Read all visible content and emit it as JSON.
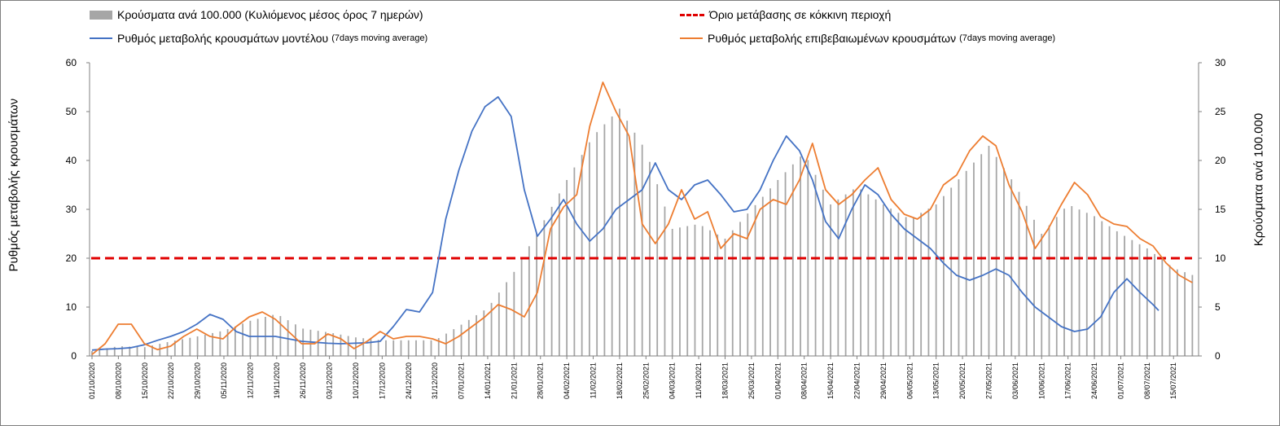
{
  "legend": {
    "cases_label": "Κρούσματα ανά 100.000 (Κυλιόμενος μέσος όρος 7 ημερών)",
    "cases_prefix": "Κρούσματα ανά",
    "cases_number": "100.000",
    "cases_suffix": "(Κυλιόμενος μέσος όρος",
    "cases_seven": "7",
    "cases_tail": "ημερών)",
    "threshold_label": "Όριο μετάβασης σε κόκκινη περιοχή",
    "model_label": "Ρυθμός μεταβολής κρουσμάτων μοντέλου",
    "model_note": "(7days moving average)",
    "confirmed_label": "Ρυθμός μεταβολής επιβεβαιωμένων κρουσμάτων",
    "confirmed_note": "(7days moving average)"
  },
  "axes": {
    "left_title": "Ρυθμός μεταβολής κρουσμάτων",
    "right_title": "Κρούσματα ανά 100.000"
  },
  "colors": {
    "bars": "#a6a6a6",
    "model": "#4472c4",
    "confirmed": "#ed7d31",
    "threshold": "#e00000"
  },
  "chart_data": {
    "type": "line",
    "title": "",
    "x_start": "01/10/2020",
    "x_end": "21/07/2021",
    "xtick_labels": [
      "01/10/2020",
      "08/10/2020",
      "15/10/2020",
      "22/10/2020",
      "29/10/2020",
      "05/11/2020",
      "12/11/2020",
      "19/11/2020",
      "26/11/2020",
      "03/12/2020",
      "10/12/2020",
      "17/12/2020",
      "24/12/2020",
      "31/12/2020",
      "07/01/2021",
      "14/01/2021",
      "21/01/2021",
      "28/01/2021",
      "04/02/2021",
      "11/02/2021",
      "18/02/2021",
      "25/02/2021",
      "04/03/2021",
      "11/03/2021",
      "18/03/2021",
      "25/03/2021",
      "01/04/2021",
      "08/04/2021",
      "15/04/2021",
      "22/04/2021",
      "29/04/2021",
      "06/05/2021",
      "13/05/2021",
      "20/05/2021",
      "27/05/2021",
      "03/06/2021",
      "10/06/2021",
      "17/06/2021",
      "24/06/2021",
      "01/07/2021",
      "08/07/2021",
      "15/07/2021"
    ],
    "ylim_left": [
      0,
      60
    ],
    "yticks_left": [
      0,
      10,
      20,
      30,
      40,
      50,
      60
    ],
    "ylim_right": [
      0,
      30
    ],
    "yticks_right": [
      0,
      5,
      10,
      15,
      20,
      25,
      30
    ],
    "threshold": 20,
    "series": [
      {
        "name": "Κρούσματα ανά 100.000 (Κυλιόμενος μέσος όρος 7 ημερών)",
        "type": "bar",
        "axis": "right",
        "points": [
          [
            0,
            0.5
          ],
          [
            7,
            1.0
          ],
          [
            14,
            0.9
          ],
          [
            21,
            1.5
          ],
          [
            28,
            2.0
          ],
          [
            35,
            2.6
          ],
          [
            42,
            3.6
          ],
          [
            49,
            4.3
          ],
          [
            56,
            2.8
          ],
          [
            63,
            2.4
          ],
          [
            70,
            1.9
          ],
          [
            77,
            1.6
          ],
          [
            84,
            1.6
          ],
          [
            91,
            1.6
          ],
          [
            98,
            3.2
          ],
          [
            105,
            4.9
          ],
          [
            112,
            8.6
          ],
          [
            119,
            13.2
          ],
          [
            126,
            18.0
          ],
          [
            133,
            22.5
          ],
          [
            140,
            25.3
          ],
          [
            147,
            21.0
          ],
          [
            154,
            13.0
          ],
          [
            161,
            13.5
          ],
          [
            168,
            12.0
          ],
          [
            175,
            15.0
          ],
          [
            182,
            18.0
          ],
          [
            189,
            20.8
          ],
          [
            196,
            15.5
          ],
          [
            203,
            17.3
          ],
          [
            210,
            15.5
          ],
          [
            217,
            14.0
          ],
          [
            224,
            15.5
          ],
          [
            231,
            18.5
          ],
          [
            238,
            21.5
          ],
          [
            245,
            17.5
          ],
          [
            252,
            12.5
          ],
          [
            259,
            15.5
          ],
          [
            266,
            14.3
          ],
          [
            273,
            12.5
          ],
          [
            280,
            11.0
          ],
          [
            287,
            9.0
          ],
          [
            294,
            8.0
          ],
          [
            301,
            8.2
          ],
          [
            308,
            6.0
          ],
          [
            315,
            4.5
          ],
          [
            322,
            2.8
          ],
          [
            329,
            2.3
          ],
          [
            336,
            3.4
          ],
          [
            343,
            6.5
          ],
          [
            350,
            6.2
          ],
          [
            357,
            4.5
          ]
        ]
      },
      {
        "name": "Ρυθμός μεταβολής κρουσμάτων μοντέλου (7days moving average)",
        "type": "line",
        "axis": "left",
        "points": [
          [
            0,
            1.2
          ],
          [
            7,
            1.4
          ],
          [
            14,
            1.5
          ],
          [
            21,
            1.7
          ],
          [
            28,
            2.3
          ],
          [
            35,
            3.2
          ],
          [
            42,
            4.0
          ],
          [
            49,
            5.0
          ],
          [
            56,
            6.5
          ],
          [
            63,
            8.5
          ],
          [
            70,
            7.5
          ],
          [
            77,
            5.0
          ],
          [
            84,
            4.0
          ],
          [
            91,
            4.0
          ],
          [
            98,
            4.0
          ],
          [
            105,
            3.5
          ],
          [
            112,
            3.0
          ],
          [
            119,
            2.8
          ],
          [
            126,
            2.6
          ],
          [
            133,
            2.5
          ],
          [
            140,
            2.6
          ],
          [
            147,
            2.7
          ],
          [
            154,
            3.0
          ],
          [
            161,
            6.0
          ],
          [
            168,
            9.5
          ],
          [
            175,
            9.0
          ],
          [
            182,
            13.0
          ],
          [
            189,
            28.0
          ],
          [
            196,
            38.0
          ],
          [
            203,
            46.0
          ],
          [
            210,
            51.0
          ],
          [
            217,
            53.0
          ],
          [
            224,
            49.0
          ],
          [
            231,
            34.0
          ],
          [
            238,
            24.5
          ],
          [
            245,
            28.0
          ],
          [
            252,
            32.0
          ],
          [
            259,
            27.0
          ],
          [
            266,
            23.5
          ],
          [
            273,
            26.0
          ],
          [
            280,
            30.0
          ],
          [
            287,
            32.0
          ],
          [
            294,
            34.0
          ],
          [
            301,
            39.5
          ],
          [
            308,
            34.0
          ],
          [
            315,
            32.0
          ],
          [
            322,
            35.0
          ],
          [
            329,
            36.0
          ],
          [
            336,
            33.0
          ],
          [
            343,
            29.5
          ],
          [
            350,
            30.0
          ],
          [
            357,
            34.0
          ],
          [
            364,
            40.0
          ],
          [
            371,
            45.0
          ],
          [
            378,
            42.0
          ],
          [
            385,
            36.0
          ],
          [
            392,
            27.5
          ],
          [
            399,
            24.0
          ],
          [
            406,
            30.0
          ],
          [
            413,
            35.0
          ],
          [
            420,
            33.0
          ],
          [
            427,
            29.0
          ],
          [
            434,
            26.0
          ],
          [
            441,
            24.0
          ],
          [
            448,
            22.0
          ],
          [
            455,
            19.0
          ],
          [
            462,
            16.5
          ],
          [
            469,
            15.5
          ],
          [
            476,
            16.5
          ],
          [
            483,
            17.8
          ],
          [
            490,
            16.5
          ],
          [
            497,
            13.0
          ],
          [
            504,
            10.0
          ],
          [
            511,
            8.0
          ],
          [
            518,
            6.0
          ],
          [
            525,
            5.0
          ],
          [
            532,
            5.5
          ],
          [
            539,
            8.0
          ],
          [
            546,
            13.0
          ],
          [
            553,
            15.8
          ],
          [
            560,
            13.0
          ],
          [
            567,
            10.5
          ],
          [
            570,
            9.3
          ]
        ]
      },
      {
        "name": "Ρυθμός μεταβολής επιβεβαιωμένων κρουσμάτων (7days moving average)",
        "type": "line",
        "axis": "left",
        "points": [
          [
            0,
            0.3
          ],
          [
            7,
            2.5
          ],
          [
            14,
            6.5
          ],
          [
            21,
            6.5
          ],
          [
            28,
            2.5
          ],
          [
            35,
            1.3
          ],
          [
            42,
            2.0
          ],
          [
            49,
            4.0
          ],
          [
            56,
            5.5
          ],
          [
            63,
            4.0
          ],
          [
            70,
            3.5
          ],
          [
            77,
            6.0
          ],
          [
            84,
            8.0
          ],
          [
            91,
            9.0
          ],
          [
            98,
            7.5
          ],
          [
            105,
            5.0
          ],
          [
            112,
            2.5
          ],
          [
            119,
            2.5
          ],
          [
            126,
            4.5
          ],
          [
            133,
            3.5
          ],
          [
            140,
            1.5
          ],
          [
            147,
            3.0
          ],
          [
            154,
            5.0
          ],
          [
            161,
            3.5
          ],
          [
            168,
            4.0
          ],
          [
            175,
            4.0
          ],
          [
            182,
            3.5
          ],
          [
            189,
            2.5
          ],
          [
            196,
            4.0
          ],
          [
            203,
            6.0
          ],
          [
            210,
            8.0
          ],
          [
            217,
            10.5
          ],
          [
            224,
            9.5
          ],
          [
            231,
            8.0
          ],
          [
            238,
            13.0
          ],
          [
            245,
            26.0
          ],
          [
            252,
            30.5
          ],
          [
            259,
            33.0
          ],
          [
            266,
            47.0
          ],
          [
            273,
            56.0
          ],
          [
            280,
            50.0
          ],
          [
            287,
            45.0
          ],
          [
            294,
            27.0
          ],
          [
            301,
            23.0
          ],
          [
            308,
            27.0
          ],
          [
            315,
            34.0
          ],
          [
            322,
            28.0
          ],
          [
            329,
            29.5
          ],
          [
            336,
            22.0
          ],
          [
            343,
            25.0
          ],
          [
            350,
            24.0
          ],
          [
            357,
            30.0
          ],
          [
            364,
            32.0
          ],
          [
            371,
            31.0
          ],
          [
            378,
            36.0
          ],
          [
            385,
            43.5
          ],
          [
            392,
            34.0
          ],
          [
            399,
            31.0
          ],
          [
            406,
            33.0
          ],
          [
            413,
            36.0
          ],
          [
            420,
            38.5
          ],
          [
            427,
            32.0
          ],
          [
            434,
            29.0
          ],
          [
            441,
            28.0
          ],
          [
            448,
            30.0
          ],
          [
            455,
            35.0
          ],
          [
            462,
            37.0
          ],
          [
            469,
            42.0
          ],
          [
            476,
            45.0
          ],
          [
            483,
            43.0
          ],
          [
            490,
            35.0
          ],
          [
            497,
            29.5
          ],
          [
            504,
            22.0
          ],
          [
            511,
            26.0
          ],
          [
            518,
            31.0
          ],
          [
            525,
            35.5
          ],
          [
            532,
            33.0
          ],
          [
            539,
            28.5
          ],
          [
            546,
            27.0
          ],
          [
            553,
            26.5
          ],
          [
            560,
            24.0
          ],
          [
            567,
            22.5
          ],
          [
            574,
            19.0
          ],
          [
            581,
            16.5
          ],
          [
            588,
            15.0
          ]
        ]
      }
    ]
  }
}
